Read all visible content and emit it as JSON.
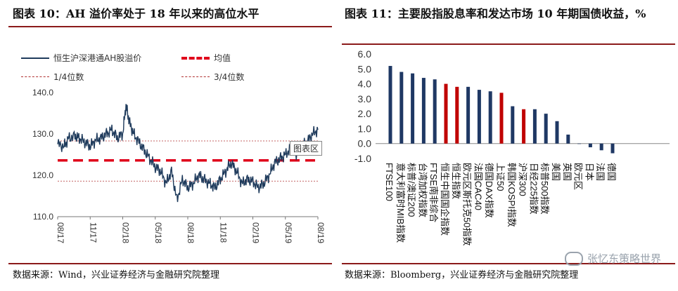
{
  "left_panel": {
    "title": "图表 10：AH 溢价率处于 18 年以来的高位水平",
    "source": "数据来源：Wind，兴业证券经济与金融研究院整理",
    "tooltip": "图表区",
    "legend": {
      "series": "恒生沪深港通AH股溢价",
      "mean": "均值",
      "q1": "1/4位数",
      "q3": "3/4位数"
    }
  },
  "right_panel": {
    "title": "图表 11：主要股指股息率和发达市场 10 年期国债收益，%",
    "source": "数据来源：Bloomberg，兴业证券经济与金融研究院整理"
  },
  "watermark": "张忆东策略世界",
  "colors": {
    "navy": "#1f3864",
    "red": "#c00000",
    "line": "#1f3b5c",
    "accent": "#8b1a1a"
  },
  "chart_data": [
    {
      "type": "line",
      "ylim": [
        110,
        140
      ],
      "yticks": [
        "110.0",
        "120.0",
        "130.0",
        "140.0"
      ],
      "xtick_labels": [
        "08/17",
        "11/17",
        "02/18",
        "05/18",
        "08/18",
        "11/18",
        "02/19",
        "05/19",
        "08/19"
      ],
      "xlim": [
        0,
        24
      ],
      "series": [
        {
          "name": "恒生沪深港通AH股溢价",
          "x": [
            0,
            0.6,
            1,
            1.6,
            2,
            2.5,
            3,
            3.5,
            4,
            4.5,
            5,
            5.5,
            6,
            6.3,
            6.6,
            7,
            7.5,
            8,
            8.5,
            9,
            9.5,
            10,
            10.5,
            11,
            11.5,
            12,
            12.5,
            13,
            13.5,
            14,
            14.5,
            15,
            15.5,
            16,
            16.5,
            17,
            17.5,
            18,
            18.5,
            19,
            19.5,
            20,
            20.5,
            21,
            21.5,
            22,
            22.5,
            23,
            23.5,
            24
          ],
          "values": [
            127.5,
            127,
            129,
            129.5,
            129,
            128,
            127,
            128.5,
            129,
            130,
            131,
            129,
            130,
            137,
            133,
            130,
            128,
            126,
            124,
            122,
            121,
            118,
            121,
            114,
            119,
            117,
            118,
            120,
            119,
            118,
            117,
            119,
            121,
            123,
            121,
            118,
            119,
            118.5,
            117,
            118,
            120,
            123,
            124,
            125,
            126.5,
            125,
            127,
            128,
            130,
            131
          ]
        },
        {
          "name": "均值",
          "y": 123.6
        },
        {
          "name": "1/4位数",
          "y": 118.6
        },
        {
          "name": "3/4位数",
          "y": 128.3
        }
      ]
    },
    {
      "type": "bar",
      "ylim": [
        -1.0,
        6.0
      ],
      "yticks": [
        "-1.0",
        "0.0",
        "1.0",
        "2.0",
        "3.0",
        "4.0",
        "5.0",
        "6.0"
      ],
      "categories": [
        "FTSE100",
        "意大利富时MIB指数",
        "标普/澳证200",
        "台湾加权指数",
        "FTSE南非综合",
        "恒生中国国企指数",
        "恒生指数",
        "欧元区斯托克50指数",
        "法国CAC40",
        "德国DAX指数",
        "上证50",
        "韩国KOSPI指数",
        "沪深300",
        "日经225指数",
        "标普500指数",
        "美国",
        "英国",
        "欧元区",
        "日本",
        "法国",
        "德国"
      ],
      "values": [
        5.2,
        4.8,
        4.7,
        4.4,
        4.3,
        4.0,
        3.8,
        3.8,
        3.6,
        3.5,
        3.4,
        2.5,
        2.3,
        2.3,
        2.0,
        1.5,
        0.6,
        0.0,
        -0.25,
        -0.45,
        -0.65
      ],
      "bar_colors": [
        "navy",
        "navy",
        "navy",
        "navy",
        "navy",
        "red",
        "red",
        "navy",
        "navy",
        "navy",
        "red",
        "navy",
        "red",
        "navy",
        "navy",
        "navy",
        "navy",
        "navy",
        "navy",
        "navy",
        "navy"
      ]
    }
  ]
}
